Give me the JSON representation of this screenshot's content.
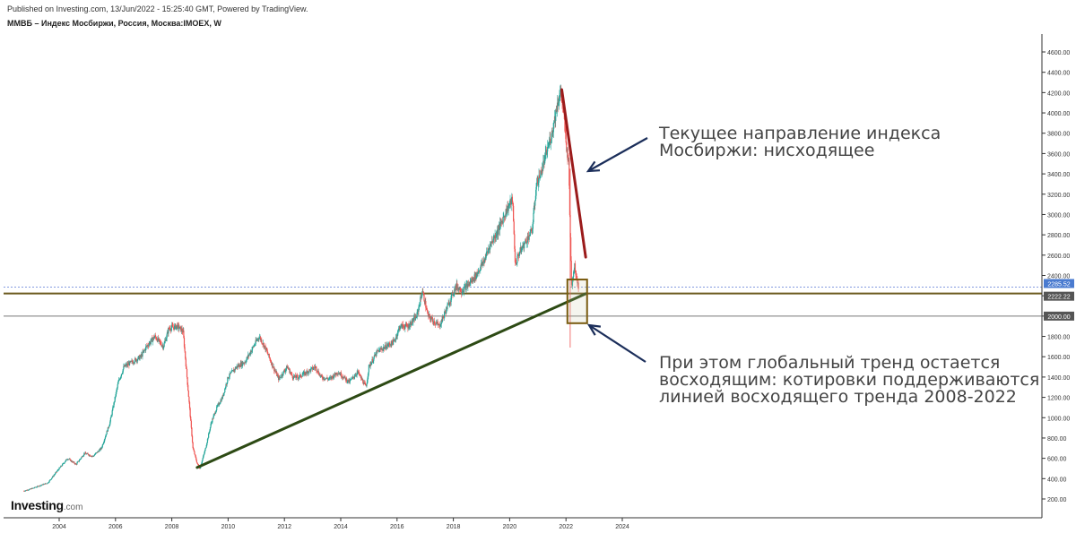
{
  "header": {
    "published": "Published on Investing.com, 13/Jun/2022 - 15:25:40 GMT, Powered by TradingView.",
    "title": "ММВБ – Индекс Мосбиржи, Россия, Москва:IMOEX, W"
  },
  "logo": {
    "main": "Investing",
    "sub": ".com"
  },
  "annotations": {
    "top": "Текущее направление индекса\nМосбиржи: нисходящее",
    "bottom": "При этом глобальный тренд остается\nвосходящим: котировки поддерживаются\nлинией восходящего тренда 2008-2022"
  },
  "colors": {
    "up": "#26a69a",
    "down": "#ef5350",
    "support_trendline": "#2d4a14",
    "downtrend": "#9b1b1b",
    "arrow": "#1b2e5a",
    "box": "#7a5c10",
    "horizontal_line": "#6b5a1e",
    "current_price_badge": "#4a7bd0",
    "level_badge": "#555555"
  },
  "chart_data": {
    "type": "line",
    "title": "ММВБ – Индекс Мосбиржи, Россия, Москва:IMOEX, W",
    "interval": "W",
    "ylim": [
      200,
      4600
    ],
    "xlim": [
      2002.7,
      2024.2
    ],
    "x_ticks": [
      2004,
      2006,
      2008,
      2010,
      2012,
      2014,
      2016,
      2018,
      2020,
      2022,
      2024
    ],
    "y_ticks": [
      200,
      400,
      600,
      800,
      1000,
      1200,
      1400,
      1600,
      1800,
      2000,
      2200,
      2400,
      2600,
      2800,
      3000,
      3200,
      3400,
      3600,
      3800,
      4000,
      4200,
      4400,
      4600
    ],
    "y_tick_labels": [
      "200.00",
      "400.00",
      "600.00",
      "800.00",
      "1000.00",
      "1200.00",
      "1400.00",
      "1600.00",
      "1800.00",
      "2000.00",
      "2200.00",
      "2400.00",
      "2600.00",
      "2800.00",
      "3000.00",
      "3200.00",
      "3400.00",
      "3600.00",
      "3800.00",
      "4000.00",
      "4200.00",
      "4400.00",
      "4600.00"
    ],
    "x_tick_labels": [
      "2004",
      "2006",
      "2008",
      "2010",
      "2012",
      "2014",
      "2016",
      "2018",
      "2020",
      "2022",
      "2024"
    ],
    "series": [
      {
        "x": [
          2002.75,
          2003.0,
          2003.3,
          2003.6,
          2004.0,
          2004.3,
          2004.6,
          2004.9,
          2005.2,
          2005.5,
          2005.8,
          2006.1,
          2006.3,
          2006.6,
          2006.9,
          2007.1,
          2007.4,
          2007.7,
          2007.9,
          2008.2,
          2008.4,
          2008.6,
          2008.75,
          2008.9,
          2009.0,
          2009.2,
          2009.4,
          2009.6,
          2009.8,
          2010.0,
          2010.3,
          2010.6,
          2010.9,
          2011.1,
          2011.3,
          2011.6,
          2011.8,
          2012.1,
          2012.3,
          2012.5,
          2012.8,
          2013.1,
          2013.3,
          2013.6,
          2013.9,
          2014.1,
          2014.3,
          2014.6,
          2014.9,
          2015.0,
          2015.3,
          2015.6,
          2015.9,
          2016.1,
          2016.4,
          2016.7,
          2016.9,
          2017.1,
          2017.3,
          2017.5,
          2017.8,
          2018.1,
          2018.3,
          2018.5,
          2018.8,
          2019.1,
          2019.3,
          2019.6,
          2019.9,
          2020.1,
          2020.2,
          2020.3,
          2020.5,
          2020.8,
          2020.95,
          2021.1,
          2021.3,
          2021.5,
          2021.7,
          2021.8,
          2021.9,
          2022.0,
          2022.1,
          2022.15,
          2022.2,
          2022.3,
          2022.4,
          2022.45
        ],
        "values": [
          280,
          300,
          330,
          360,
          500,
          600,
          540,
          650,
          620,
          700,
          950,
          1350,
          1500,
          1550,
          1600,
          1700,
          1800,
          1700,
          1880,
          1900,
          1850,
          1200,
          700,
          550,
          500,
          700,
          950,
          1100,
          1200,
          1400,
          1500,
          1550,
          1700,
          1800,
          1700,
          1500,
          1380,
          1500,
          1400,
          1400,
          1450,
          1500,
          1400,
          1380,
          1450,
          1400,
          1350,
          1450,
          1300,
          1500,
          1650,
          1700,
          1750,
          1900,
          1900,
          2000,
          2250,
          2000,
          1950,
          1900,
          2100,
          2300,
          2250,
          2300,
          2400,
          2550,
          2700,
          2850,
          3050,
          3150,
          2500,
          2600,
          2700,
          2850,
          3300,
          3400,
          3600,
          3800,
          4100,
          4200,
          4050,
          3700,
          3500,
          2800,
          2300,
          2500,
          2350,
          2286
        ]
      }
    ],
    "price_labels": [
      {
        "value": 2285.52,
        "label": "2285.52"
      },
      {
        "value": 2222.22,
        "label": "2222.22"
      },
      {
        "value": 2000.0,
        "label": "2000.00"
      }
    ],
    "trendlines": [
      {
        "name": "support",
        "x1": 2008.9,
        "y1": 510,
        "x2": 2022.7,
        "y2": 2220
      },
      {
        "name": "downtrend",
        "x1": 2021.85,
        "y1": 4230,
        "x2": 2022.7,
        "y2": 2580
      }
    ],
    "horizontal_levels": [
      2285.52,
      2222.22,
      2000.0
    ],
    "highlight_box": {
      "x1": 2022.05,
      "x2": 2022.75,
      "y1": 1930,
      "y2": 2360
    },
    "legend": "none",
    "grid": false
  }
}
